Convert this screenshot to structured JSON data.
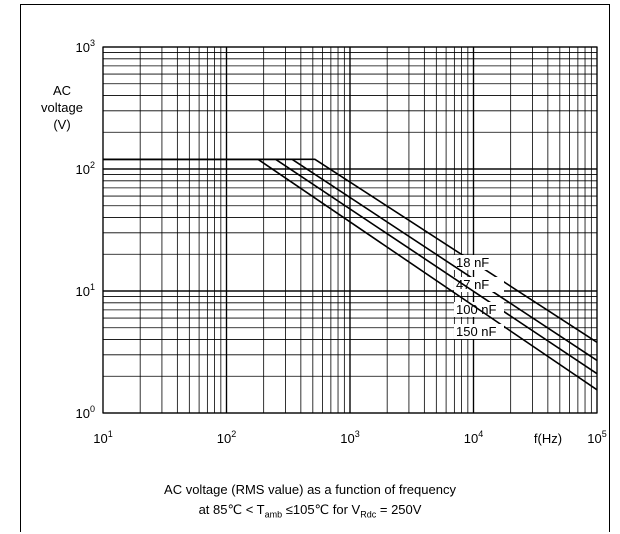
{
  "chart_data": {
    "type": "line",
    "xscale": "log",
    "yscale": "log",
    "xlim": [
      10,
      100000
    ],
    "ylim": [
      1,
      1000
    ],
    "grid": true,
    "xlabel": "f(Hz)",
    "ylabel_lines": [
      "AC",
      "voltage",
      "(V)"
    ],
    "x_ticks": [
      {
        "base": "10",
        "exp": "1"
      },
      {
        "base": "10",
        "exp": "2"
      },
      {
        "base": "10",
        "exp": "3"
      },
      {
        "base": "10",
        "exp": "4"
      },
      {
        "base": "10",
        "exp": "5"
      }
    ],
    "y_ticks": [
      {
        "base": "10",
        "exp": "0"
      },
      {
        "base": "10",
        "exp": "1"
      },
      {
        "base": "10",
        "exp": "2"
      },
      {
        "base": "10",
        "exp": "3"
      }
    ],
    "series": [
      {
        "name": "18 nF",
        "label": "18 nF",
        "x": [
          10,
          520,
          100000
        ],
        "y": [
          120,
          120,
          3.8
        ]
      },
      {
        "name": "47 nF",
        "label": "47 nF",
        "x": [
          10,
          340,
          100000
        ],
        "y": [
          120,
          120,
          2.7
        ]
      },
      {
        "name": "100 nF",
        "label": "100 nF",
        "x": [
          10,
          250,
          100000
        ],
        "y": [
          120,
          120,
          2.1
        ]
      },
      {
        "name": "150 nF",
        "label": "150 nF",
        "x": [
          10,
          180,
          100000
        ],
        "y": [
          120,
          120,
          1.55
        ]
      }
    ]
  },
  "caption": {
    "line1": "AC voltage (RMS value) as a function of frequency",
    "line2_prefix": "at 85℃ < T",
    "line2_sub1": "amb",
    "line2_mid": " ≤105℃  for V",
    "line2_sub2": "Rdc",
    "line2_suffix": " = 250V"
  }
}
